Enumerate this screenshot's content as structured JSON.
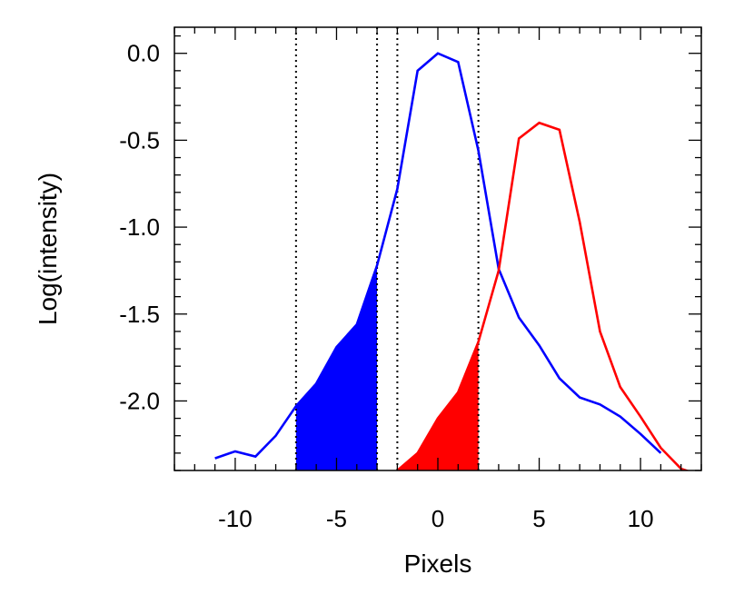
{
  "chart_data": {
    "type": "line",
    "title": "",
    "xlabel": "Pixels",
    "ylabel": "Log(intensity)",
    "xlim": [
      -13,
      13
    ],
    "ylim": [
      -2.4,
      0.15
    ],
    "x_ticks": [
      -10,
      -5,
      0,
      5,
      10
    ],
    "x_tick_labels": [
      "-10",
      "-5",
      "0",
      "5",
      "10"
    ],
    "y_ticks": [
      0.0,
      -0.5,
      -1.0,
      -1.5,
      -2.0
    ],
    "y_tick_labels": [
      "0.0",
      "-0.5",
      "-1.0",
      "-1.5",
      "-2.0"
    ],
    "grid": false,
    "vertical_dotted_lines": [
      -7,
      -3,
      -2,
      2
    ],
    "series": [
      {
        "color": "#0000ff",
        "x": [
          -11,
          -10,
          -9,
          -8,
          -7,
          -6,
          -5,
          -4,
          -3,
          -2,
          -1,
          0,
          1,
          2,
          3,
          4,
          5,
          6,
          7,
          8,
          9,
          10,
          11
        ],
        "y": [
          -2.33,
          -2.29,
          -2.32,
          -2.2,
          -2.03,
          -1.9,
          -1.69,
          -1.56,
          -1.22,
          -0.78,
          -0.1,
          0.0,
          -0.05,
          -0.56,
          -1.24,
          -1.52,
          -1.68,
          -1.87,
          -1.98,
          -2.02,
          -2.09,
          -2.19,
          -2.3
        ],
        "fill_range": [
          -7,
          -3
        ]
      },
      {
        "color": "#ff0000",
        "x": [
          -2,
          -1,
          0,
          1,
          2,
          3,
          4,
          5,
          6,
          7,
          8,
          9,
          10,
          11,
          12,
          12.5
        ],
        "y": [
          -2.4,
          -2.3,
          -2.1,
          -1.95,
          -1.66,
          -1.25,
          -0.49,
          -0.4,
          -0.44,
          -0.97,
          -1.6,
          -1.92,
          -2.09,
          -2.27,
          -2.39,
          -2.41
        ],
        "fill_range": [
          -2,
          2
        ]
      }
    ]
  }
}
